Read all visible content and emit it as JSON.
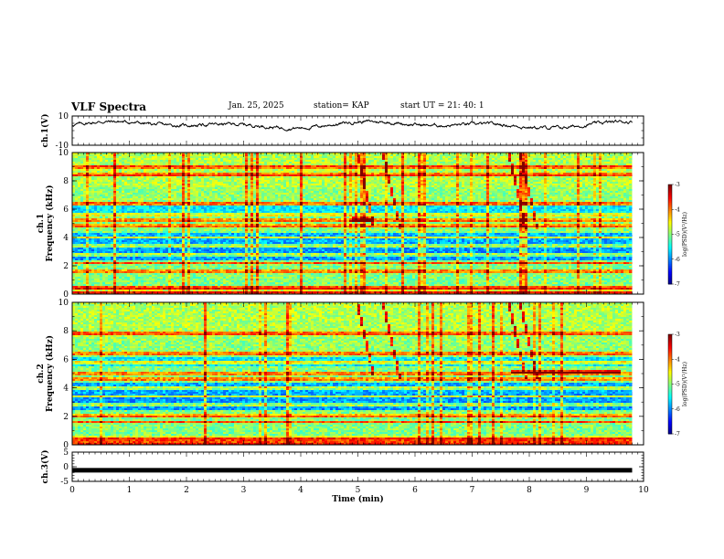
{
  "header": {
    "title": "VLF Spectra",
    "date": "Jan. 25, 2025",
    "station": "station= KAP",
    "start": "start  UT  =   21: 40: 1"
  },
  "chart_data": [
    {
      "type": "line",
      "name": "ch1-voltage",
      "ylabel": "ch.1(V)",
      "ylim": [
        -10,
        10
      ],
      "yticks": [
        -10,
        10
      ],
      "xlim": [
        0,
        10
      ],
      "description_series": "Noisy signal roughly between 0 and 8 V over 0–9.8 min"
    },
    {
      "type": "heatmap",
      "name": "ch1-spectrogram",
      "ylabel": "ch.1\nFrequency (kHz)",
      "ylim": [
        0,
        10
      ],
      "yticks": [
        0,
        2,
        4,
        6,
        8,
        10
      ],
      "xlim": [
        0,
        10
      ],
      "data_extent_min": 9.8,
      "colorbar": {
        "label": "log(PSD)(V²/Hz)",
        "range": [
          -7,
          -3
        ],
        "ticks": [
          -3,
          -4,
          -5,
          -6,
          -7
        ]
      },
      "horizontal_bands_khz": [
        0.1,
        0.4,
        1.6,
        2.2,
        2.8,
        3.4,
        4.0,
        4.8,
        5.2,
        5.6,
        6.4,
        8.4,
        9.0
      ],
      "vertical_events_min": [
        5.0,
        5.45,
        7.65,
        7.85
      ]
    },
    {
      "type": "heatmap",
      "name": "ch2-spectrogram",
      "ylabel": "ch.2\nFrequency (kHz)",
      "ylim": [
        0,
        10
      ],
      "yticks": [
        0,
        2,
        4,
        6,
        8,
        10
      ],
      "xlim": [
        0,
        10
      ],
      "data_extent_min": 9.8,
      "colorbar": {
        "label": "log(PSD)(V²/Hz)",
        "range": [
          -7,
          -3
        ],
        "ticks": [
          -3,
          -4,
          -5,
          -6,
          -7
        ]
      },
      "horizontal_bands_khz": [
        0.1,
        0.4,
        1.6,
        2.0,
        2.8,
        3.4,
        4.0,
        4.6,
        5.0,
        5.8,
        6.4,
        7.8
      ],
      "vertical_events_min": [
        5.0,
        5.45,
        7.65,
        7.85
      ]
    },
    {
      "type": "line",
      "name": "ch3-voltage",
      "ylabel": "ch.3(V)",
      "ylim": [
        -5,
        5
      ],
      "yticks": [
        -5,
        0,
        5
      ],
      "xlim": [
        0,
        10
      ],
      "xlabel": "Time (min)",
      "xticks": [
        0,
        1,
        2,
        3,
        4,
        5,
        6,
        7,
        8,
        9,
        10
      ],
      "constant_value": -1.2
    }
  ],
  "labels": {
    "ch1_v": "ch.1(V)",
    "ch3_v": "ch.3(V)",
    "freq": "Frequency (kHz)",
    "ch1": "ch.1",
    "ch2": "ch.2",
    "time": "Time (min)",
    "cb": "log(PSD)(V²/Hz)"
  }
}
